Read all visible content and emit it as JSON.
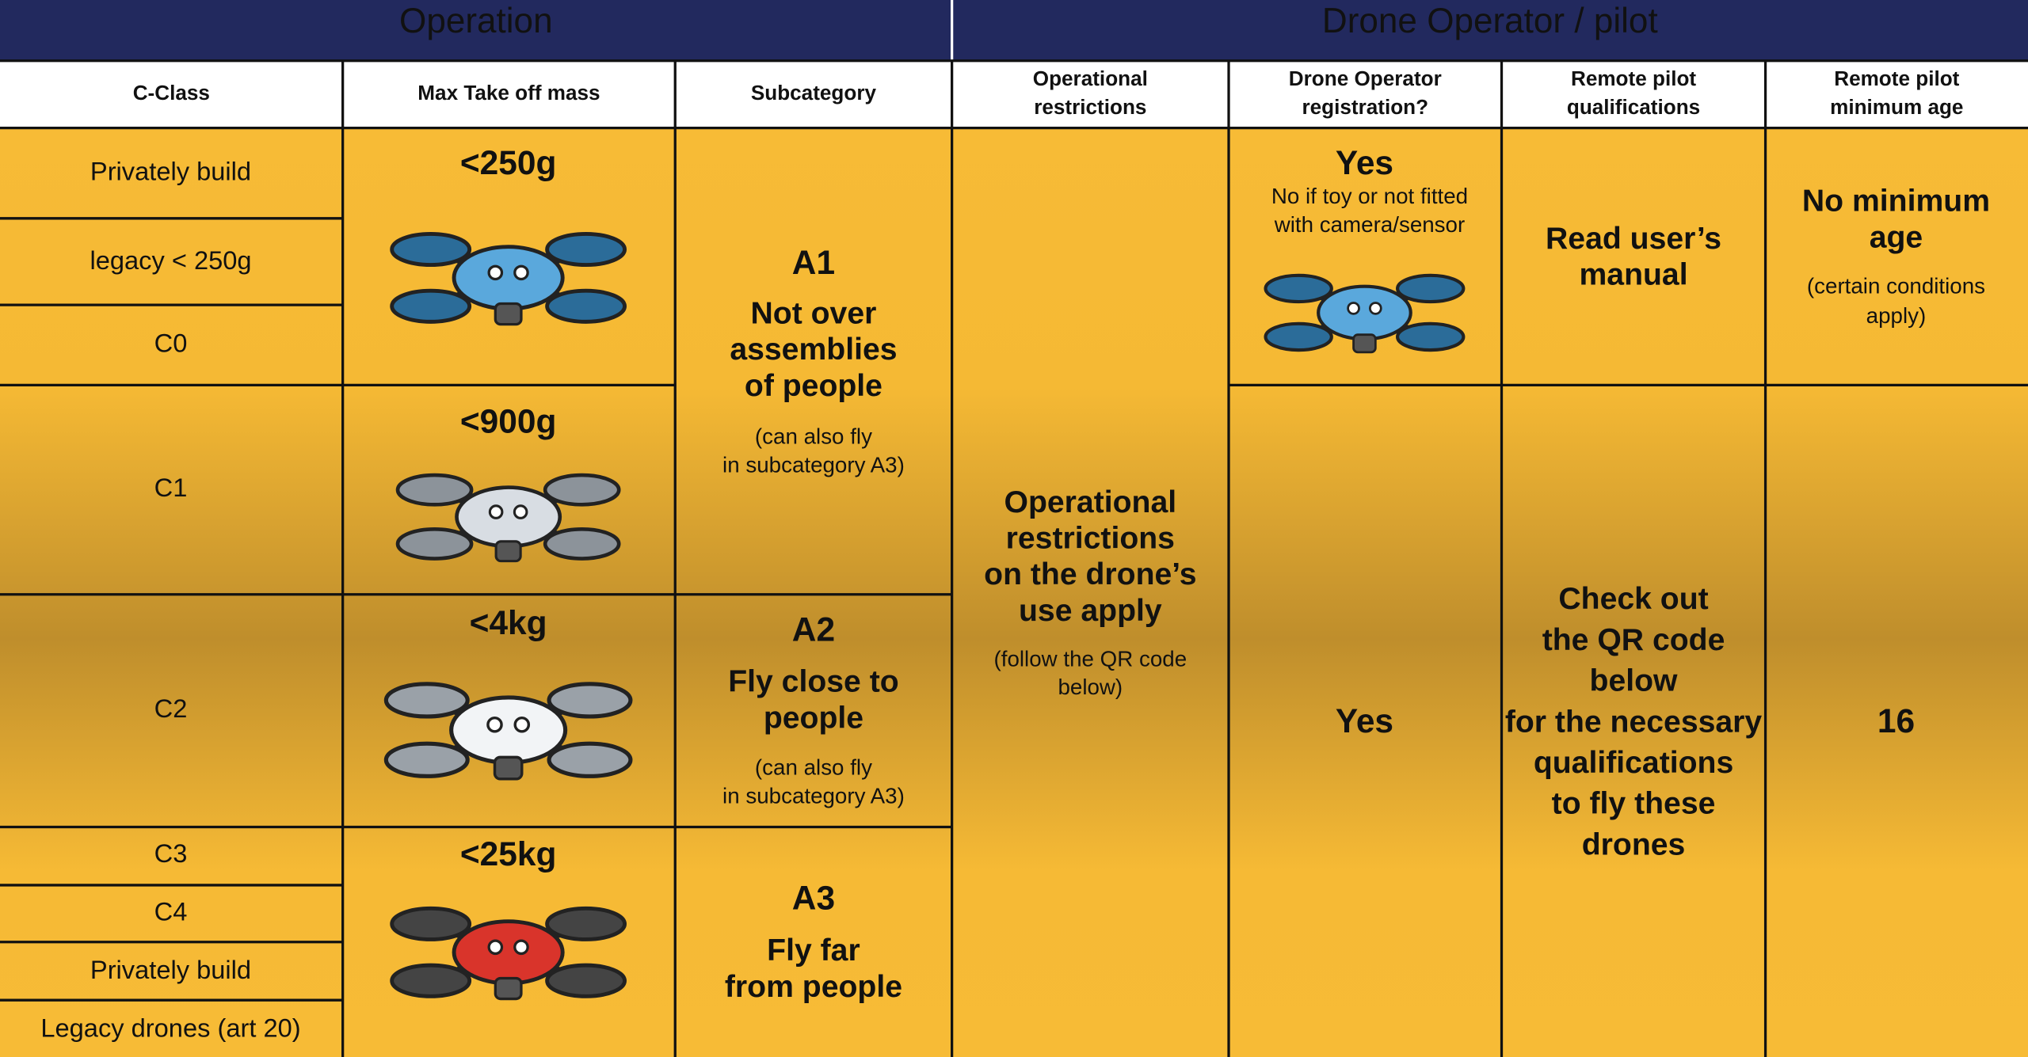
{
  "header": {
    "groups": [
      "Operation",
      "Drone Operator / pilot"
    ],
    "columns": [
      [
        "C-Class"
      ],
      [
        "Max Take off mass"
      ],
      [
        "Subcategory"
      ],
      [
        "Operational",
        "restrictions"
      ],
      [
        "Drone Operator",
        "registration?"
      ],
      [
        "Remote pilot",
        "qualifications"
      ],
      [
        "Remote pilot",
        "minimum age"
      ]
    ]
  },
  "classes": [
    "Privately build",
    "legacy < 250g",
    "C0",
    "C1",
    "C2",
    "C3",
    "C4",
    "Privately build",
    "Legacy drones (art 20)"
  ],
  "masses": [
    "<250g",
    "<900g",
    "<4kg",
    "<25kg"
  ],
  "subcategories": [
    {
      "code": "A1",
      "title": [
        "Not over",
        "assemblies",
        "of people"
      ],
      "note": [
        "(can also fly",
        "in subcategory A3)"
      ]
    },
    {
      "code": "A2",
      "title": [
        "Fly close to",
        "people"
      ],
      "note": [
        "(can also fly",
        "in subcategory A3)"
      ]
    },
    {
      "code": "A3",
      "title": [
        "Fly far",
        "from people"
      ]
    }
  ],
  "restrictions": {
    "title": [
      "Operational",
      "restrictions",
      "on the drone’s",
      "use apply"
    ],
    "note": [
      "(follow the QR code",
      "below)"
    ]
  },
  "registration": [
    {
      "title": "Yes",
      "note": [
        "No if toy or not fitted",
        "with camera/sensor"
      ]
    },
    {
      "title": "Yes"
    }
  ],
  "qualifications": [
    [
      "Read user’s",
      "manual"
    ],
    [
      "Check out",
      "the QR code",
      "below",
      "for the necessary",
      "qualifications",
      "to fly these",
      "drones"
    ]
  ],
  "age": [
    {
      "title": [
        "No minimum",
        "age"
      ],
      "note": [
        "(certain conditions",
        "apply)"
      ]
    },
    {
      "title": "16"
    }
  ]
}
